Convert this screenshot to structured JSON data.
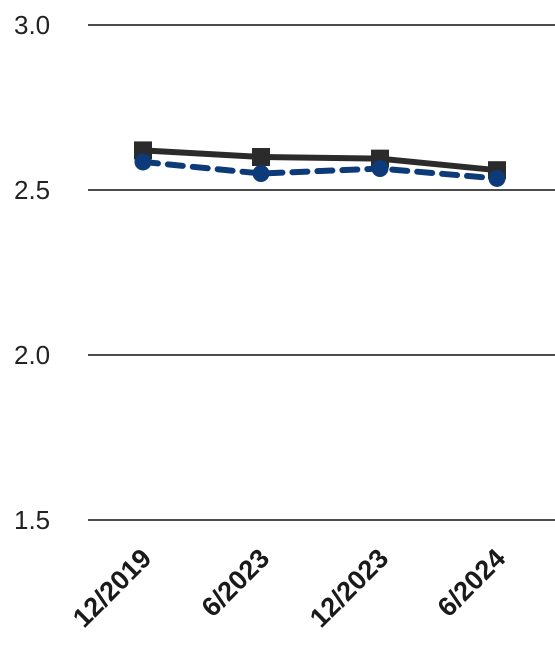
{
  "chart_data": {
    "type": "line",
    "title": "",
    "xlabel": "",
    "ylabel": "",
    "categories": [
      "12/2019",
      "6/2023",
      "12/2023",
      "6/2024"
    ],
    "ylim": [
      1.5,
      3.0
    ],
    "yticks": [
      1.5,
      2.0,
      2.5,
      3.0
    ],
    "ytick_labels": [
      "1.5",
      "2.0",
      "2.5",
      "3.0"
    ],
    "grid": true,
    "legend": "none",
    "series": [
      {
        "marker": "square",
        "line_style": "solid",
        "color": "#2b2b2b",
        "values": [
          2.62,
          2.6,
          2.595,
          2.56
        ]
      },
      {
        "marker": "circle",
        "line_style": "dashed",
        "color": "#0d3b7a",
        "values": [
          2.585,
          2.55,
          2.565,
          2.535
        ]
      }
    ]
  }
}
